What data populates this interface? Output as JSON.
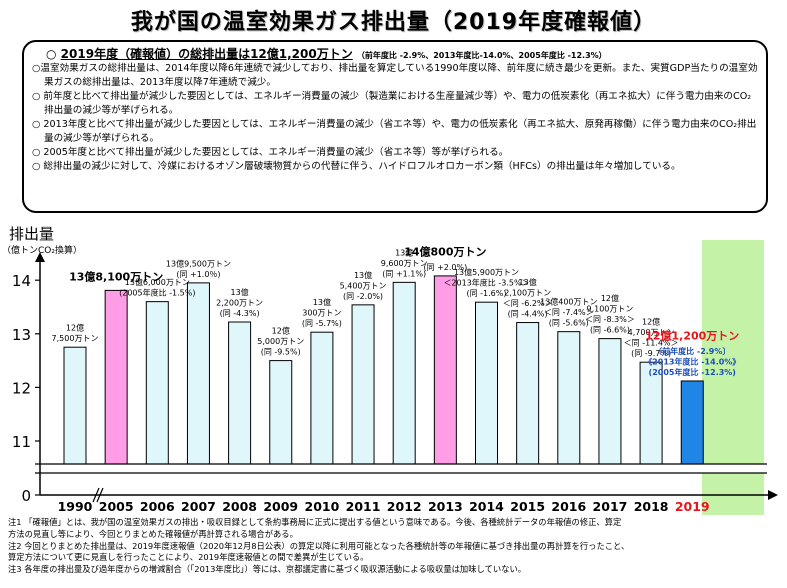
{
  "title": "我が国の温室効果ガス排出量（2019年度確報値）",
  "summary": {
    "headline_bullet": "○",
    "headline": "2019年度（確報値）の総排出量は12億1,200万トン",
    "headline_detail": "（前年度比 -2.9%、2013年度比-14.0%、2005年度比 -12.3%）",
    "items": [
      "○温室効果ガスの総排出量は、2014年度以降6年連続で減少しており、排出量を算定している1990年度以降、前年度に続き最少を更新。また、実質GDP当たりの温室効果ガスの総排出量は、2013年度以降7年連続で減少。",
      "○ 前年度と比べて排出量が減少した要因としては、エネルギー消費量の減少（製造業における生産量減少等）や、電力の低炭素化（再エネ拡大）に伴う電力由来のCO₂排出量の減少等が挙げられる。",
      "○ 2013年度と比べて排出量が減少した要因としては、エネルギー消費量の減少（省エネ等）や、電力の低炭素化（再エネ拡大、原発再稼働）に伴う電力由来のCO₂排出量の減少等が挙げられる。",
      "○ 2005年度と比べて排出量が減少した要因としては、エネルギー消費量の減少（省エネ等）等が挙げられる。",
      "○ 総排出量の減少に対して、冷媒におけるオゾン層破壊物質からの代替に伴う、ハイドロフルオロカーボン類（HFCs）の排出量は年々増加している。"
    ]
  },
  "chart_data": {
    "type": "bar",
    "ylabel": "排出量",
    "yunit": "（億トンCO₂換算）",
    "yticks": [
      0,
      11,
      12,
      13,
      14
    ],
    "ylim": [
      10.5,
      14.5
    ],
    "axis_break": true,
    "categories": [
      "1990",
      "2005",
      "2006",
      "2007",
      "2008",
      "2009",
      "2010",
      "2011",
      "2012",
      "2013",
      "2014",
      "2015",
      "2016",
      "2017",
      "2018",
      "2019"
    ],
    "values": [
      12.75,
      13.81,
      13.6,
      13.95,
      13.22,
      12.5,
      13.03,
      13.54,
      13.96,
      14.08,
      13.59,
      13.21,
      13.04,
      12.91,
      12.47,
      12.12
    ],
    "value_labels": [
      [
        "12億",
        "7,500万トン"
      ],
      [
        "13億8,100万トン"
      ],
      [
        "13億6,000万トン",
        "(2005年度比 -1.5%)"
      ],
      [
        "13億9,500万トン",
        "(同 +1.0％)"
      ],
      [
        "13億",
        "2,200万トン",
        "(同 -4.3%)"
      ],
      [
        "12億",
        "5,000万トン",
        "(同 -9.5%)"
      ],
      [
        "13億",
        "300万トン",
        "(同 -5.7%)"
      ],
      [
        "13億",
        "5,400万トン",
        "(同 -2.0%)"
      ],
      [
        "13億",
        "9,600万トン",
        "(同 +1.1%)"
      ],
      [
        "14億800万トン",
        "(同 +2.0%)"
      ],
      [
        "13億5,900万トン",
        "＜2013年度比 -3.5%＞",
        "(同 -1.6%)"
      ],
      [
        "13億",
        "2,100万トン",
        "＜同 -6.2%＞",
        "(同 -4.4%)"
      ],
      [
        "13億400万トン",
        "＜同 -7.4%＞",
        "(同 -5.6%)"
      ],
      [
        "12億",
        "9,100万トン",
        "＜同 -8.3%＞",
        "(同 -6.6%)"
      ],
      [
        "12億",
        "4,700万トン",
        "＜同 -11.4%＞",
        "(同 -9.7%)"
      ],
      [
        "12億1,200万トン",
        "〔前年度比 -2.9%〕",
        "《2013年度比 -14.0%》",
        "(2005年度比 -12.3%)"
      ]
    ],
    "colors": {
      "default_bar": "#dff7fb",
      "bar_2005": "#ff9ee6",
      "bar_2013": "#ff9ee6",
      "bar_2019": "#1f86e6",
      "highlight_2019_bg": "#c4f3a8",
      "label_2019": "#e8141c",
      "detail_2019": "#1d4fb8",
      "axis_2019": "#e8141c"
    }
  },
  "notes": [
    "注1 「確報値」とは、我が国の温室効果ガスの排出・吸収目録として条約事務局に正式に提出する値という意味である。今後、各種統計データの年報値の修正、算定",
    "方法の見直し等により、今回とりまとめた確報値が再計算される場合がある。",
    "注2 今回とりまとめた排出量は、2019年度速報値（2020年12月8日公表）の算定以降に利用可能となった各種統計等の年報値に基づき排出量の再計算を行ったこと、",
    "算定方法について更に見直しを行ったことにより、2019年度速報値との間で差異が生じている。",
    "注3 各年度の排出量及び過年度からの増減割合（「2013年度比」）等には、京都議定書に基づく吸収源活動による吸収量は加味していない。"
  ]
}
